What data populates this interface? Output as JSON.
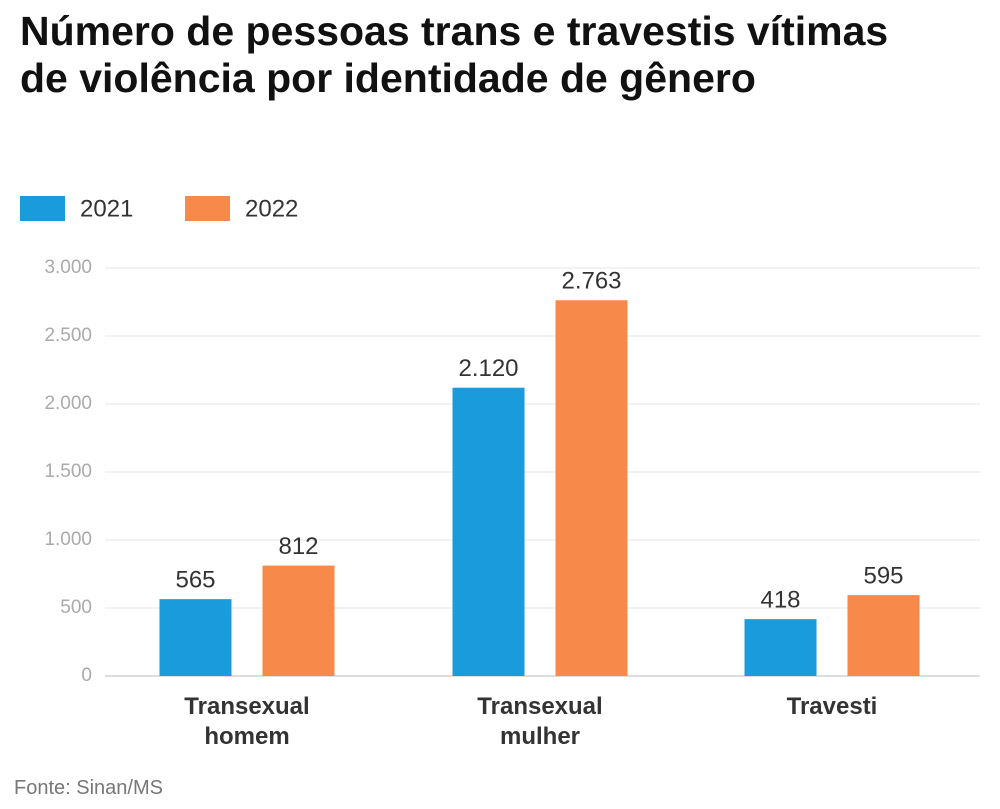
{
  "chart_data": {
    "type": "bar",
    "title": "Número de pessoas trans e travestis vítimas de violência por identidade de gênero",
    "source": "Fonte: Sinan/MS",
    "categories": [
      "Transexual homem",
      "Transexual mulher",
      "Travesti"
    ],
    "series": [
      {
        "name": "2021",
        "color": "#1a9bdb",
        "values": [
          565,
          2120,
          418
        ],
        "value_labels": [
          "565",
          "2.120",
          "418"
        ]
      },
      {
        "name": "2022",
        "color": "#f78a4b",
        "values": [
          812,
          2763,
          595
        ],
        "value_labels": [
          "812",
          "2.763",
          "595"
        ]
      }
    ],
    "ylim": [
      0,
      3000
    ],
    "yticks": [
      0,
      500,
      {
        "value": 1000,
        "label": "1.000"
      },
      {
        "value": 1500,
        "label": "1.500"
      },
      {
        "value": 2000,
        "label": "2.000"
      },
      {
        "value": 2500,
        "label": "2.500"
      },
      {
        "value": 3000,
        "label": "3.000"
      }
    ],
    "grid": true,
    "legend": "top-left"
  }
}
